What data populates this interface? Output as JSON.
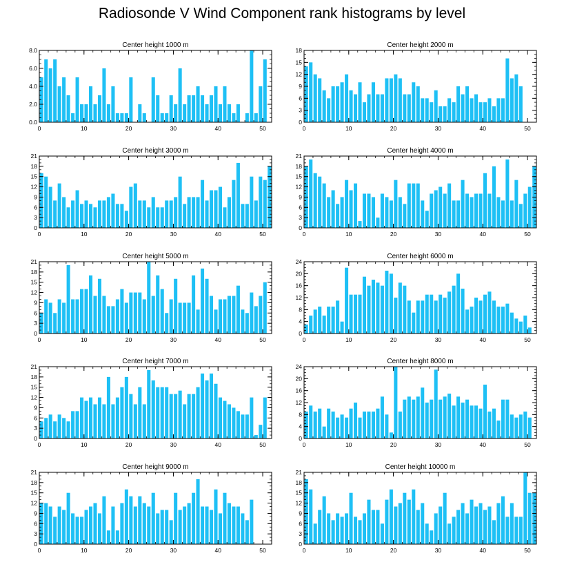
{
  "title": "Radiosonde V Wind Component rank histograms by level",
  "colors": {
    "bar": "#1ec0f5",
    "axis": "#000000",
    "background": "#ffffff"
  },
  "chart_data": [
    {
      "type": "bar",
      "title": "Center height 1000 m",
      "x": [
        0,
        1,
        2,
        3,
        4,
        5,
        6,
        7,
        8,
        9,
        10,
        11,
        12,
        13,
        14,
        15,
        16,
        17,
        18,
        19,
        20,
        21,
        22,
        23,
        24,
        25,
        26,
        27,
        28,
        29,
        30,
        31,
        32,
        33,
        34,
        35,
        36,
        37,
        38,
        39,
        40,
        41,
        42,
        43,
        44,
        45,
        46,
        47,
        48,
        49,
        50,
        51
      ],
      "values": [
        5,
        7,
        6,
        7,
        4,
        5,
        3,
        1,
        5,
        2,
        2,
        4,
        2,
        3,
        6,
        2,
        4,
        1,
        1,
        1,
        5,
        0,
        2,
        1,
        0,
        5,
        3,
        1,
        1,
        3,
        2,
        6,
        2,
        3,
        3,
        4,
        3,
        2,
        3,
        4,
        2,
        4,
        2,
        1,
        2,
        0,
        1,
        8,
        1,
        4,
        7,
        0
      ],
      "xlim": [
        0,
        52
      ],
      "ylim": [
        0,
        8
      ],
      "xticks": [
        0,
        10,
        20,
        30,
        40,
        50
      ],
      "yticks": [
        0,
        2,
        4,
        6,
        8
      ],
      "ytick_labels": [
        "0.0",
        "2.0",
        "4.0",
        "6.0",
        "8.0"
      ]
    },
    {
      "type": "bar",
      "title": "Center height 2000 m",
      "x": [
        0,
        1,
        2,
        3,
        4,
        5,
        6,
        7,
        8,
        9,
        10,
        11,
        12,
        13,
        14,
        15,
        16,
        17,
        18,
        19,
        20,
        21,
        22,
        23,
        24,
        25,
        26,
        27,
        28,
        29,
        30,
        31,
        32,
        33,
        34,
        35,
        36,
        37,
        38,
        39,
        40,
        41,
        42,
        43,
        44,
        45,
        46,
        47,
        48,
        49,
        50,
        51
      ],
      "values": [
        14,
        15,
        12,
        11,
        8,
        6,
        9,
        9,
        10,
        12,
        8,
        7,
        10,
        5,
        7,
        10,
        7,
        7,
        11,
        11,
        12,
        11,
        7,
        7,
        10,
        9,
        6,
        6,
        5,
        8,
        4,
        4,
        6,
        5,
        9,
        7,
        9,
        6,
        7,
        5,
        5,
        6,
        4,
        6,
        6,
        16,
        11,
        12,
        9,
        0,
        0,
        0
      ],
      "xlim": [
        0,
        52
      ],
      "ylim": [
        0,
        18
      ],
      "xticks": [
        0,
        10,
        20,
        30,
        40,
        50
      ],
      "yticks": [
        0,
        3,
        6,
        9,
        12,
        15,
        18
      ],
      "ytick_labels": [
        "0",
        "3",
        "6",
        "9",
        "12",
        "15",
        "18"
      ]
    },
    {
      "type": "bar",
      "title": "Center height 3000 m",
      "x": [
        0,
        1,
        2,
        3,
        4,
        5,
        6,
        7,
        8,
        9,
        10,
        11,
        12,
        13,
        14,
        15,
        16,
        17,
        18,
        19,
        20,
        21,
        22,
        23,
        24,
        25,
        26,
        27,
        28,
        29,
        30,
        31,
        32,
        33,
        34,
        35,
        36,
        37,
        38,
        39,
        40,
        41,
        42,
        43,
        44,
        45,
        46,
        47,
        48,
        49,
        50,
        51
      ],
      "values": [
        16,
        15,
        12,
        8,
        13,
        9,
        6,
        8,
        11,
        7,
        8,
        7,
        6,
        8,
        8,
        9,
        10,
        7,
        7,
        5,
        12,
        13,
        8,
        8,
        6,
        9,
        6,
        6,
        8,
        8,
        9,
        15,
        7,
        9,
        9,
        9,
        14,
        8,
        11,
        11,
        12,
        6,
        9,
        14,
        19,
        7,
        7,
        15,
        8,
        15,
        14,
        18
      ],
      "xlim": [
        0,
        52
      ],
      "ylim": [
        0,
        21
      ],
      "xticks": [
        0,
        10,
        20,
        30,
        40,
        50
      ],
      "yticks": [
        0,
        3,
        6,
        9,
        12,
        15,
        18,
        21
      ],
      "ytick_labels": [
        "0",
        "3",
        "6",
        "9",
        "12",
        "15",
        "18",
        "21"
      ]
    },
    {
      "type": "bar",
      "title": "Center height 4000 m",
      "x": [
        0,
        1,
        2,
        3,
        4,
        5,
        6,
        7,
        8,
        9,
        10,
        11,
        12,
        13,
        14,
        15,
        16,
        17,
        18,
        19,
        20,
        21,
        22,
        23,
        24,
        25,
        26,
        27,
        28,
        29,
        30,
        31,
        32,
        33,
        34,
        35,
        36,
        37,
        38,
        39,
        40,
        41,
        42,
        43,
        44,
        45,
        46,
        47,
        48,
        49,
        50,
        51
      ],
      "values": [
        18,
        20,
        16,
        15,
        13,
        9,
        11,
        7,
        9,
        14,
        11,
        13,
        2,
        10,
        10,
        9,
        3,
        10,
        9,
        8,
        14,
        9,
        7,
        13,
        13,
        13,
        8,
        5,
        10,
        11,
        12,
        10,
        13,
        8,
        8,
        14,
        10,
        9,
        10,
        10,
        16,
        10,
        18,
        9,
        8,
        20,
        8,
        14,
        7,
        10,
        12,
        18
      ],
      "xlim": [
        0,
        52
      ],
      "ylim": [
        0,
        21
      ],
      "xticks": [
        0,
        10,
        20,
        30,
        40,
        50
      ],
      "yticks": [
        0,
        3,
        6,
        9,
        12,
        15,
        18,
        21
      ],
      "ytick_labels": [
        "0",
        "3",
        "6",
        "9",
        "12",
        "15",
        "18",
        "21"
      ]
    },
    {
      "type": "bar",
      "title": "Center height 5000 m",
      "x": [
        0,
        1,
        2,
        3,
        4,
        5,
        6,
        7,
        8,
        9,
        10,
        11,
        12,
        13,
        14,
        15,
        16,
        17,
        18,
        19,
        20,
        21,
        22,
        23,
        24,
        25,
        26,
        27,
        28,
        29,
        30,
        31,
        32,
        33,
        34,
        35,
        36,
        37,
        38,
        39,
        40,
        41,
        42,
        43,
        44,
        45,
        46,
        47,
        48,
        49,
        50,
        51
      ],
      "values": [
        6,
        10,
        9,
        6,
        10,
        9,
        20,
        10,
        10,
        13,
        13,
        17,
        11,
        16,
        11,
        8,
        8,
        10,
        13,
        9,
        12,
        12,
        12,
        10,
        21,
        11,
        17,
        13,
        6,
        10,
        16,
        9,
        9,
        9,
        17,
        7,
        19,
        16,
        11,
        7,
        10,
        10,
        11,
        11,
        14,
        7,
        6,
        12,
        8,
        11,
        15,
        0
      ],
      "xlim": [
        0,
        52
      ],
      "ylim": [
        0,
        21
      ],
      "xticks": [
        0,
        10,
        20,
        30,
        40,
        50
      ],
      "yticks": [
        0,
        3,
        6,
        9,
        12,
        15,
        18,
        21
      ],
      "ytick_labels": [
        "0",
        "3",
        "6",
        "9",
        "12",
        "15",
        "18",
        "21"
      ]
    },
    {
      "type": "bar",
      "title": "Center height 6000 m",
      "x": [
        0,
        1,
        2,
        3,
        4,
        5,
        6,
        7,
        8,
        9,
        10,
        11,
        12,
        13,
        14,
        15,
        16,
        17,
        18,
        19,
        20,
        21,
        22,
        23,
        24,
        25,
        26,
        27,
        28,
        29,
        30,
        31,
        32,
        33,
        34,
        35,
        36,
        37,
        38,
        39,
        40,
        41,
        42,
        43,
        44,
        45,
        46,
        47,
        48,
        49,
        50,
        51
      ],
      "values": [
        3,
        6,
        8,
        9,
        6,
        9,
        9,
        11,
        4,
        22,
        13,
        13,
        13,
        19,
        16,
        18,
        17,
        16,
        21,
        20,
        12,
        17,
        16,
        11,
        7,
        11,
        11,
        13,
        13,
        11,
        13,
        12,
        14,
        16,
        20,
        15,
        8,
        9,
        12,
        11,
        13,
        14,
        11,
        9,
        9,
        10,
        7,
        5,
        4,
        6,
        2,
        0
      ],
      "xlim": [
        0,
        52
      ],
      "ylim": [
        0,
        24
      ],
      "xticks": [
        0,
        10,
        20,
        30,
        40,
        50
      ],
      "yticks": [
        0,
        4,
        8,
        12,
        16,
        20,
        24
      ],
      "ytick_labels": [
        "0",
        "4",
        "8",
        "12",
        "16",
        "20",
        "24"
      ]
    },
    {
      "type": "bar",
      "title": "Center height 7000 m",
      "x": [
        0,
        1,
        2,
        3,
        4,
        5,
        6,
        7,
        8,
        9,
        10,
        11,
        12,
        13,
        14,
        15,
        16,
        17,
        18,
        19,
        20,
        21,
        22,
        23,
        24,
        25,
        26,
        27,
        28,
        29,
        30,
        31,
        32,
        33,
        34,
        35,
        36,
        37,
        38,
        39,
        40,
        41,
        42,
        43,
        44,
        45,
        46,
        47,
        48,
        49,
        50,
        51
      ],
      "values": [
        5,
        6,
        7,
        5,
        7,
        6,
        5,
        8,
        8,
        12,
        11,
        12,
        10,
        12,
        10,
        18,
        10,
        12,
        15,
        18,
        13,
        10,
        15,
        10,
        20,
        17,
        15,
        15,
        15,
        13,
        13,
        14,
        10,
        13,
        13,
        15,
        19,
        17,
        19,
        16,
        12,
        11,
        10,
        9,
        8,
        7,
        7,
        12,
        1,
        4,
        12,
        0
      ],
      "xlim": [
        0,
        52
      ],
      "ylim": [
        0,
        21
      ],
      "xticks": [
        0,
        10,
        20,
        30,
        40,
        50
      ],
      "yticks": [
        0,
        3,
        6,
        9,
        12,
        15,
        18,
        21
      ],
      "ytick_labels": [
        "0",
        "3",
        "6",
        "9",
        "12",
        "15",
        "18",
        "21"
      ]
    },
    {
      "type": "bar",
      "title": "Center height 8000 m",
      "x": [
        0,
        1,
        2,
        3,
        4,
        5,
        6,
        7,
        8,
        9,
        10,
        11,
        12,
        13,
        14,
        15,
        16,
        17,
        18,
        19,
        20,
        21,
        22,
        23,
        24,
        25,
        26,
        27,
        28,
        29,
        30,
        31,
        32,
        33,
        34,
        35,
        36,
        37,
        38,
        39,
        40,
        41,
        42,
        43,
        44,
        45,
        46,
        47,
        48,
        49,
        50,
        51
      ],
      "values": [
        9,
        11,
        9,
        10,
        4,
        10,
        9,
        7,
        8,
        7,
        10,
        12,
        7,
        9,
        9,
        9,
        10,
        14,
        8,
        2,
        24,
        9,
        13,
        14,
        13,
        14,
        17,
        12,
        13,
        23,
        13,
        14,
        15,
        11,
        14,
        12,
        13,
        11,
        11,
        10,
        18,
        9,
        10,
        6,
        13,
        13,
        8,
        7,
        8,
        9,
        7,
        0
      ],
      "xlim": [
        0,
        52
      ],
      "ylim": [
        0,
        24
      ],
      "xticks": [
        0,
        10,
        20,
        30,
        40,
        50
      ],
      "yticks": [
        0,
        4,
        8,
        12,
        16,
        20,
        24
      ],
      "ytick_labels": [
        "0",
        "4",
        "8",
        "12",
        "16",
        "20",
        "24"
      ]
    },
    {
      "type": "bar",
      "title": "Center height 9000 m",
      "x": [
        0,
        1,
        2,
        3,
        4,
        5,
        6,
        7,
        8,
        9,
        10,
        11,
        12,
        13,
        14,
        15,
        16,
        17,
        18,
        19,
        20,
        21,
        22,
        23,
        24,
        25,
        26,
        27,
        28,
        29,
        30,
        31,
        32,
        33,
        34,
        35,
        36,
        37,
        38,
        39,
        40,
        41,
        42,
        43,
        44,
        45,
        46,
        47,
        48,
        49,
        50,
        51
      ],
      "values": [
        12,
        12,
        11,
        8,
        11,
        10,
        15,
        9,
        8,
        8,
        10,
        11,
        12,
        9,
        14,
        4,
        11,
        4,
        12,
        16,
        14,
        11,
        14,
        12,
        11,
        15,
        9,
        10,
        10,
        7,
        15,
        10,
        11,
        12,
        15,
        19,
        11,
        11,
        10,
        16,
        9,
        15,
        12,
        11,
        11,
        9,
        7,
        13,
        0,
        0,
        0,
        0
      ],
      "xlim": [
        0,
        52
      ],
      "ylim": [
        0,
        21
      ],
      "xticks": [
        0,
        10,
        20,
        30,
        40,
        50
      ],
      "yticks": [
        0,
        3,
        6,
        9,
        12,
        15,
        18,
        21
      ],
      "ytick_labels": [
        "0",
        "3",
        "6",
        "9",
        "12",
        "15",
        "18",
        "21"
      ]
    },
    {
      "type": "bar",
      "title": "Center height 10000 m",
      "x": [
        0,
        1,
        2,
        3,
        4,
        5,
        6,
        7,
        8,
        9,
        10,
        11,
        12,
        13,
        14,
        15,
        16,
        17,
        18,
        19,
        20,
        21,
        22,
        23,
        24,
        25,
        26,
        27,
        28,
        29,
        30,
        31,
        32,
        33,
        34,
        35,
        36,
        37,
        38,
        39,
        40,
        41,
        42,
        43,
        44,
        45,
        46,
        47,
        48,
        49,
        50,
        51
      ],
      "values": [
        19,
        16,
        6,
        10,
        14,
        9,
        7,
        9,
        8,
        9,
        15,
        8,
        7,
        9,
        13,
        10,
        10,
        6,
        13,
        16,
        11,
        12,
        15,
        13,
        16,
        10,
        12,
        6,
        4,
        9,
        11,
        15,
        6,
        8,
        10,
        12,
        9,
        13,
        11,
        12,
        10,
        11,
        7,
        12,
        14,
        8,
        12,
        8,
        8,
        21,
        15,
        15
      ],
      "xlim": [
        0,
        52
      ],
      "ylim": [
        0,
        21
      ],
      "xticks": [
        0,
        10,
        20,
        30,
        40,
        50
      ],
      "yticks": [
        0,
        3,
        6,
        9,
        12,
        15,
        18,
        21
      ],
      "ytick_labels": [
        "0",
        "3",
        "6",
        "9",
        "12",
        "15",
        "18",
        "21"
      ]
    }
  ]
}
